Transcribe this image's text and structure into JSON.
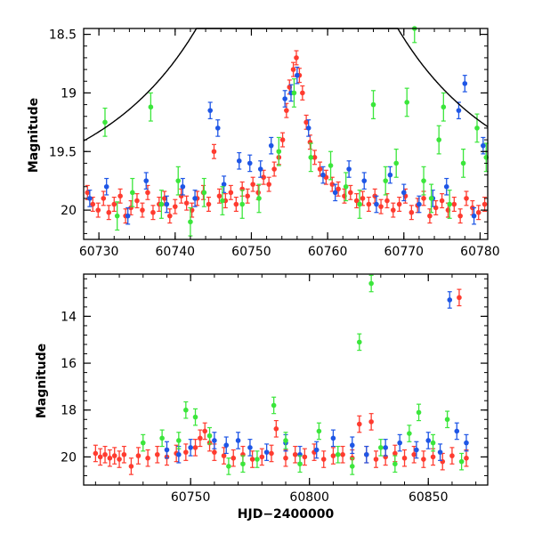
{
  "chart_data": [
    {
      "type": "scatter",
      "panel": "top",
      "xlabel": "",
      "ylabel": "Magnitude",
      "xlim": [
        60728,
        60781
      ],
      "ylim": [
        20.25,
        18.45
      ],
      "y_inverted": true,
      "x_ticks": [
        60730,
        60740,
        60750,
        60760,
        60770,
        60780
      ],
      "y_ticks": [
        18.5,
        19,
        19.5,
        20
      ],
      "x_tick_labels": [
        "60730",
        "60740",
        "60750",
        "60760",
        "60770",
        "60780"
      ],
      "y_tick_labels": [
        "18.5",
        "19",
        "19.5",
        "20"
      ],
      "grid": false,
      "model_curve": {
        "color": "#000000",
        "t0": 60756.0,
        "tE": 30.0,
        "u0": 0.12,
        "baseline": 20.0,
        "amplification_mag": 1.3
      },
      "series": [
        {
          "color": "#ff3b2f",
          "error": 0.06,
          "points": [
            [
              60728.5,
              19.85
            ],
            [
              60729.2,
              19.95
            ],
            [
              60729.9,
              20.0
            ],
            [
              60730.6,
              19.9
            ],
            [
              60731.3,
              20.02
            ],
            [
              60732.0,
              19.95
            ],
            [
              60732.8,
              19.88
            ],
            [
              60733.5,
              20.05
            ],
            [
              60734.2,
              19.98
            ],
            [
              60735.0,
              19.92
            ],
            [
              60735.7,
              20.0
            ],
            [
              60736.4,
              19.85
            ],
            [
              60737.1,
              20.02
            ],
            [
              60737.9,
              19.95
            ],
            [
              60738.6,
              19.9
            ],
            [
              60739.3,
              20.05
            ],
            [
              60740.0,
              19.97
            ],
            [
              60740.8,
              19.88
            ],
            [
              60741.5,
              19.94
            ],
            [
              60742.2,
              20.0
            ],
            [
              60742.9,
              19.9
            ],
            [
              60743.7,
              19.85
            ],
            [
              60744.4,
              19.95
            ],
            [
              60745.1,
              19.5
            ],
            [
              60745.8,
              19.88
            ],
            [
              60746.6,
              19.92
            ],
            [
              60747.3,
              19.85
            ],
            [
              60748.0,
              19.95
            ],
            [
              60748.8,
              19.82
            ],
            [
              60749.5,
              19.88
            ],
            [
              60750.2,
              19.78
            ],
            [
              60750.9,
              19.85
            ],
            [
              60751.6,
              19.72
            ],
            [
              60752.3,
              19.78
            ],
            [
              60753.0,
              19.65
            ],
            [
              60753.6,
              19.55
            ],
            [
              60754.1,
              19.4
            ],
            [
              60754.6,
              19.15
            ],
            [
              60755.0,
              18.95
            ],
            [
              60755.5,
              18.8
            ],
            [
              60755.9,
              18.7
            ],
            [
              60756.3,
              18.85
            ],
            [
              60756.7,
              19.0
            ],
            [
              60757.2,
              19.25
            ],
            [
              60757.7,
              19.42
            ],
            [
              60758.3,
              19.55
            ],
            [
              60759.0,
              19.65
            ],
            [
              60759.8,
              19.72
            ],
            [
              60760.6,
              19.78
            ],
            [
              60761.4,
              19.82
            ],
            [
              60762.2,
              19.88
            ],
            [
              60763.0,
              19.85
            ],
            [
              60763.8,
              19.92
            ],
            [
              60764.6,
              19.9
            ],
            [
              60765.4,
              19.95
            ],
            [
              60766.2,
              19.88
            ],
            [
              60767.0,
              19.97
            ],
            [
              60767.8,
              19.92
            ],
            [
              60768.6,
              20.0
            ],
            [
              60769.4,
              19.95
            ],
            [
              60770.2,
              19.88
            ],
            [
              60771.0,
              20.02
            ],
            [
              60771.8,
              19.96
            ],
            [
              60772.6,
              19.9
            ],
            [
              60773.4,
              20.05
            ],
            [
              60774.2,
              19.98
            ],
            [
              60775.0,
              19.92
            ],
            [
              60775.8,
              20.0
            ],
            [
              60776.6,
              19.95
            ],
            [
              60777.4,
              20.05
            ],
            [
              60778.2,
              19.9
            ],
            [
              60779.0,
              19.98
            ],
            [
              60779.8,
              20.02
            ],
            [
              60780.6,
              19.95
            ]
          ]
        },
        {
          "color": "#1e56e6",
          "error": 0.07,
          "points": [
            [
              60728.8,
              19.9
            ],
            [
              60731.0,
              19.8
            ],
            [
              60733.8,
              20.05
            ],
            [
              60736.2,
              19.75
            ],
            [
              60738.9,
              19.95
            ],
            [
              60741.0,
              19.8
            ],
            [
              60742.6,
              19.9
            ],
            [
              60744.6,
              19.15
            ],
            [
              60745.6,
              19.3
            ],
            [
              60746.4,
              19.78
            ],
            [
              60748.4,
              19.58
            ],
            [
              60749.8,
              19.6
            ],
            [
              60751.2,
              19.65
            ],
            [
              60752.6,
              19.45
            ],
            [
              60754.4,
              19.05
            ],
            [
              60755.2,
              19.0
            ],
            [
              60756.0,
              18.85
            ],
            [
              60757.5,
              19.3
            ],
            [
              60759.4,
              19.7
            ],
            [
              60761.0,
              19.85
            ],
            [
              60762.8,
              19.65
            ],
            [
              60764.8,
              19.75
            ],
            [
              60766.4,
              19.95
            ],
            [
              60768.2,
              19.7
            ],
            [
              60770.0,
              19.85
            ],
            [
              60772.0,
              19.95
            ],
            [
              60773.8,
              19.9
            ],
            [
              60775.6,
              19.8
            ],
            [
              60777.2,
              19.15
            ],
            [
              60778.0,
              18.92
            ],
            [
              60779.2,
              20.05
            ],
            [
              60780.4,
              19.45
            ]
          ]
        },
        {
          "color": "#3be63b",
          "error": 0.12,
          "points": [
            [
              60730.8,
              19.25
            ],
            [
              60732.4,
              20.05
            ],
            [
              60734.4,
              19.85
            ],
            [
              60736.8,
              19.12
            ],
            [
              60738.2,
              19.95
            ],
            [
              60740.4,
              19.75
            ],
            [
              60742.0,
              20.1
            ],
            [
              60743.8,
              19.85
            ],
            [
              60746.2,
              19.92
            ],
            [
              60748.8,
              19.95
            ],
            [
              60751.0,
              19.9
            ],
            [
              60753.6,
              19.5
            ],
            [
              60755.6,
              19.0
            ],
            [
              60757.8,
              19.55
            ],
            [
              60760.4,
              19.62
            ],
            [
              60762.4,
              19.8
            ],
            [
              60764.2,
              19.95
            ],
            [
              60766.0,
              19.1
            ],
            [
              60767.6,
              19.75
            ],
            [
              60769.0,
              19.6
            ],
            [
              60770.4,
              19.08
            ],
            [
              60771.4,
              18.45
            ],
            [
              60772.6,
              19.75
            ],
            [
              60773.6,
              19.9
            ],
            [
              60774.6,
              19.4
            ],
            [
              60775.2,
              19.12
            ],
            [
              60776.0,
              19.95
            ],
            [
              60777.8,
              19.6
            ],
            [
              60779.6,
              19.3
            ],
            [
              60780.8,
              19.55
            ]
          ]
        }
      ]
    },
    {
      "type": "scatter",
      "panel": "bottom",
      "xlabel": "HJD−2400000",
      "ylabel": "Magnitude",
      "xlim": [
        60705,
        60875
      ],
      "ylim": [
        21.2,
        12.2
      ],
      "y_inverted": true,
      "x_ticks": [
        60750,
        60800,
        60850
      ],
      "y_ticks": [
        14,
        16,
        18,
        20
      ],
      "x_tick_labels": [
        "60750",
        "60800",
        "60850"
      ],
      "y_tick_labels": [
        "14",
        "16",
        "18",
        "20"
      ],
      "grid": false,
      "series": [
        {
          "color": "#ff3b2f",
          "points": [
            [
              60710,
              19.85
            ],
            [
              60712,
              20.0
            ],
            [
              60714,
              19.9
            ],
            [
              60716,
              20.05
            ],
            [
              60718,
              19.95
            ],
            [
              60720,
              20.1
            ],
            [
              60722,
              19.9
            ],
            [
              60725,
              20.4
            ],
            [
              60728,
              19.95
            ],
            [
              60732,
              20.05
            ],
            [
              60736,
              19.9
            ],
            [
              60740,
              20.0
            ],
            [
              60744,
              19.85
            ],
            [
              60748,
              19.8
            ],
            [
              60752,
              19.6
            ],
            [
              60754,
              19.2
            ],
            [
              60756,
              18.9
            ],
            [
              60758,
              19.4
            ],
            [
              60760,
              19.8
            ],
            [
              60764,
              19.95
            ],
            [
              60768,
              20.05
            ],
            [
              60772,
              19.9
            ],
            [
              60776,
              20.1
            ],
            [
              60780,
              20.0
            ],
            [
              60784,
              19.85
            ],
            [
              60786,
              18.8
            ],
            [
              60790,
              20.05
            ],
            [
              60794,
              19.9
            ],
            [
              60798,
              20.0
            ],
            [
              60802,
              19.8
            ],
            [
              60806,
              20.1
            ],
            [
              60810,
              19.95
            ],
            [
              60814,
              19.9
            ],
            [
              60818,
              20.05
            ],
            [
              60821,
              18.6
            ],
            [
              60824,
              19.9
            ],
            [
              60826,
              18.5
            ],
            [
              60828,
              20.1
            ],
            [
              60832,
              20.0
            ],
            [
              60836,
              19.85
            ],
            [
              60840,
              20.05
            ],
            [
              60844,
              19.9
            ],
            [
              60848,
              20.1
            ],
            [
              60852,
              20.0
            ],
            [
              60856,
              20.2
            ],
            [
              60860,
              19.95
            ],
            [
              60863,
              13.2
            ],
            [
              60866,
              20.05
            ]
          ]
        },
        {
          "color": "#1e56e6",
          "points": [
            [
              60740,
              19.7
            ],
            [
              60745,
              19.9
            ],
            [
              60750,
              19.6
            ],
            [
              60760,
              19.3
            ],
            [
              60765,
              19.5
            ],
            [
              60770,
              19.3
            ],
            [
              60775,
              19.6
            ],
            [
              60782,
              19.8
            ],
            [
              60790,
              19.4
            ],
            [
              60796,
              19.9
            ],
            [
              60803,
              19.7
            ],
            [
              60810,
              19.2
            ],
            [
              60818,
              19.5
            ],
            [
              60824,
              19.9
            ],
            [
              60832,
              19.6
            ],
            [
              60838,
              19.4
            ],
            [
              60845,
              19.7
            ],
            [
              60850,
              19.3
            ],
            [
              60855,
              19.8
            ],
            [
              60859,
              13.3
            ],
            [
              60862,
              18.9
            ],
            [
              60866,
              19.4
            ]
          ]
        },
        {
          "color": "#3be63b",
          "points": [
            [
              60730,
              19.4
            ],
            [
              60738,
              19.2
            ],
            [
              60745,
              19.3
            ],
            [
              60748,
              18.0
            ],
            [
              60752,
              18.3
            ],
            [
              60758,
              19.1
            ],
            [
              60766,
              20.4
            ],
            [
              60772,
              20.3
            ],
            [
              60778,
              20.1
            ],
            [
              60785,
              17.8
            ],
            [
              60790,
              19.3
            ],
            [
              60796,
              20.3
            ],
            [
              60804,
              18.9
            ],
            [
              60812,
              19.9
            ],
            [
              60818,
              20.4
            ],
            [
              60821,
              15.1
            ],
            [
              60826,
              12.6
            ],
            [
              60830,
              19.6
            ],
            [
              60836,
              20.3
            ],
            [
              60842,
              19.0
            ],
            [
              60846,
              18.1
            ],
            [
              60852,
              19.4
            ],
            [
              60858,
              18.4
            ],
            [
              60864,
              20.2
            ]
          ]
        }
      ]
    }
  ]
}
